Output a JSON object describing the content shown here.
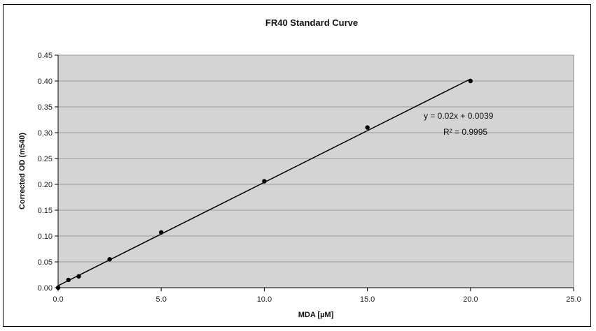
{
  "chart_data": {
    "type": "scatter",
    "title": "FR40 Standard Curve",
    "xlabel": "MDA [µM]",
    "ylabel": "Corrected OD (m540)",
    "xlim": [
      0,
      25
    ],
    "ylim": [
      0,
      0.45
    ],
    "x_ticks": [
      "0.0",
      "5.0",
      "10.0",
      "15.0",
      "20.0",
      "25.0"
    ],
    "y_ticks": [
      "0.00",
      "0.05",
      "0.10",
      "0.15",
      "0.20",
      "0.25",
      "0.30",
      "0.35",
      "0.40",
      "0.45"
    ],
    "grid": "horizontal",
    "plot_background": "#d4d4d4",
    "series": [
      {
        "x": [
          0,
          0.5,
          1,
          2.5,
          5,
          10,
          15,
          20
        ],
        "y": [
          0.0,
          0.015,
          0.022,
          0.055,
          0.107,
          0.206,
          0.31,
          0.4
        ]
      }
    ],
    "trendline": {
      "slope": 0.02,
      "intercept": 0.0039,
      "x_range": [
        0,
        20
      ]
    },
    "annotations": [
      {
        "text": "y = 0.02x + 0.0039"
      },
      {
        "text": "R² = 0.9995"
      }
    ]
  }
}
